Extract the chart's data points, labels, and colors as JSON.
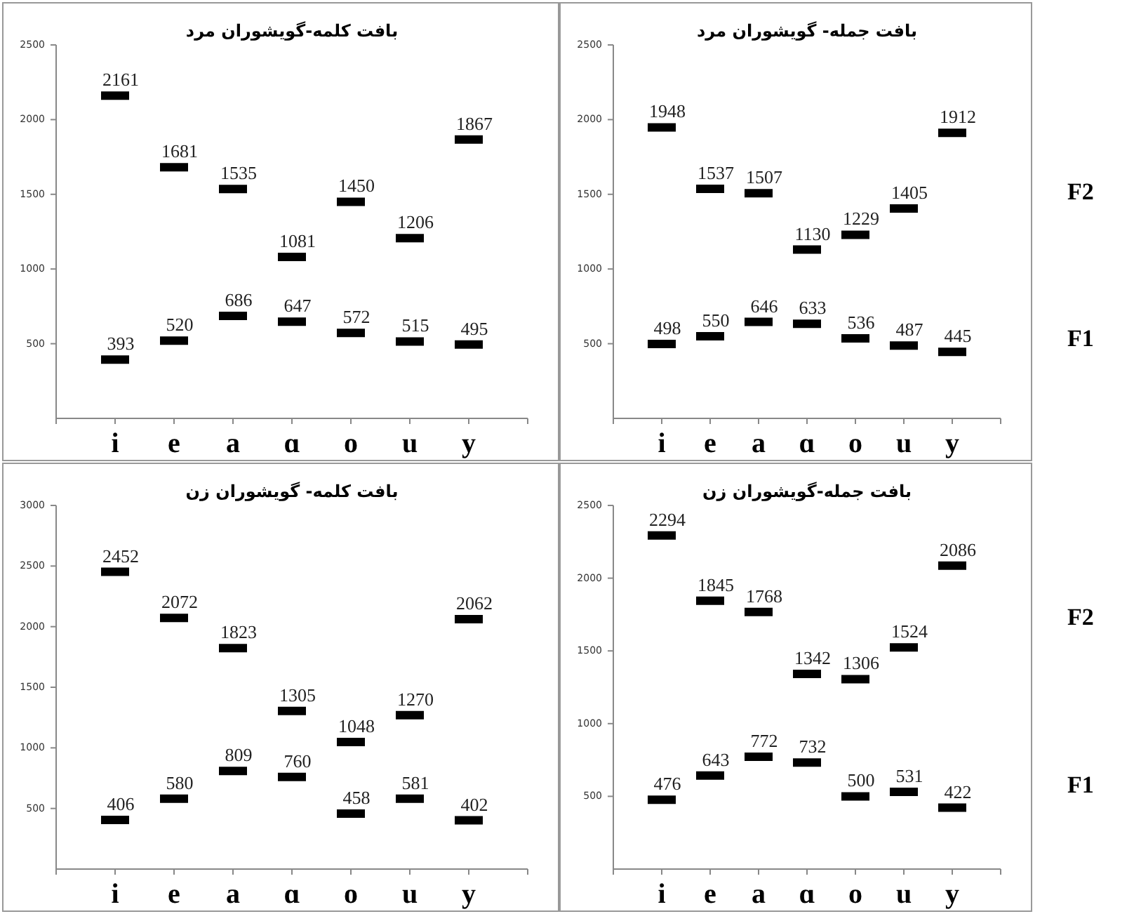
{
  "chart_data": [
    {
      "type": "scatter",
      "title": "بافت کلمه-گویشوران مرد",
      "categories": [
        "i",
        "e",
        "a",
        "ɑ",
        "o",
        "u",
        "y"
      ],
      "ylim": [
        0,
        2500
      ],
      "yticks": [
        500,
        1000,
        1500,
        2000,
        2500
      ],
      "data_labels": true,
      "series": [
        {
          "color": "#000000",
          "values": [
            2161,
            1681,
            1535,
            1081,
            1450,
            1206,
            1867
          ]
        },
        {
          "color": "#000000",
          "values": [
            393,
            520,
            686,
            647,
            572,
            515,
            495
          ]
        }
      ]
    },
    {
      "type": "scatter",
      "title": "بافت جمله- گویشوران مرد",
      "categories": [
        "i",
        "e",
        "a",
        "ɑ",
        "o",
        "u",
        "y"
      ],
      "ylim": [
        0,
        2500
      ],
      "yticks": [
        500,
        1000,
        1500,
        2000,
        2500
      ],
      "data_labels": true,
      "series": [
        {
          "name": "F2",
          "color": "#000000",
          "values": [
            1948,
            1537,
            1507,
            1130,
            1229,
            1405,
            1912
          ]
        },
        {
          "name": "F1",
          "color": "#000000",
          "values": [
            498,
            550,
            646,
            633,
            536,
            487,
            445
          ]
        }
      ]
    },
    {
      "type": "scatter",
      "title": "بافت کلمه- گویشوران زن",
      "categories": [
        "i",
        "e",
        "a",
        "ɑ",
        "o",
        "u",
        "y"
      ],
      "ylim": [
        0,
        3000
      ],
      "yticks": [
        500,
        1000,
        1500,
        2000,
        2500,
        3000
      ],
      "data_labels": true,
      "series": [
        {
          "color": "#000000",
          "values": [
            2452,
            2072,
            1823,
            1305,
            1048,
            1270,
            2062
          ]
        },
        {
          "color": "#000000",
          "values": [
            406,
            580,
            809,
            760,
            458,
            581,
            402
          ]
        }
      ]
    },
    {
      "type": "scatter",
      "title": "بافت جمله-گویشوران زن",
      "categories": [
        "i",
        "e",
        "a",
        "ɑ",
        "o",
        "u",
        "y"
      ],
      "ylim": [
        0,
        2500
      ],
      "yticks": [
        500,
        1000,
        1500,
        2000,
        2500
      ],
      "data_labels": true,
      "series": [
        {
          "name": "F2",
          "color": "#000000",
          "values": [
            2294,
            1845,
            1768,
            1342,
            1306,
            1524,
            2086
          ]
        },
        {
          "name": "F1",
          "color": "#000000",
          "values": [
            476,
            643,
            772,
            732,
            500,
            531,
            422
          ]
        }
      ]
    }
  ]
}
